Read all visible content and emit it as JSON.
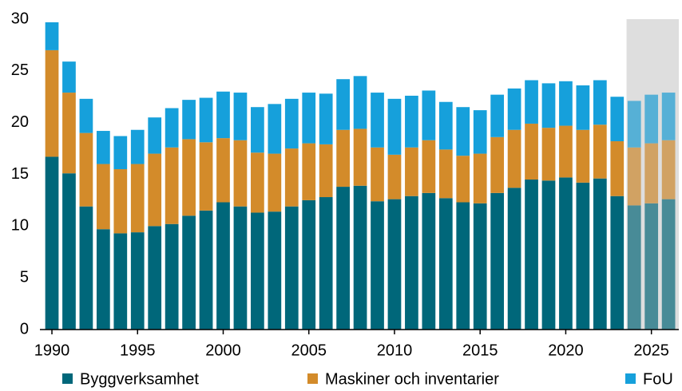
{
  "chart_data": {
    "type": "stacked_bar",
    "x": [
      1990,
      1991,
      1992,
      1993,
      1994,
      1995,
      1996,
      1997,
      1998,
      1999,
      2000,
      2001,
      2002,
      2003,
      2004,
      2005,
      2006,
      2007,
      2008,
      2009,
      2010,
      2011,
      2012,
      2013,
      2014,
      2015,
      2016,
      2017,
      2018,
      2019,
      2020,
      2021,
      2022,
      2023,
      2024,
      2025,
      2026
    ],
    "series": [
      {
        "name": "Byggverksamhet",
        "color": "#00677a",
        "values": [
          16.7,
          15.1,
          11.9,
          9.7,
          9.3,
          9.4,
          10.0,
          10.2,
          11.0,
          11.5,
          12.3,
          11.9,
          11.3,
          11.4,
          11.9,
          12.5,
          12.8,
          13.8,
          13.9,
          12.4,
          12.6,
          12.9,
          13.2,
          12.7,
          12.3,
          12.2,
          13.2,
          13.7,
          14.5,
          14.4,
          14.7,
          14.2,
          14.6,
          12.9,
          12.0,
          12.2,
          12.6
        ]
      },
      {
        "name": "Maskiner och inventarier",
        "color": "#d38b2a",
        "values": [
          10.3,
          7.8,
          7.1,
          6.3,
          6.2,
          6.6,
          7.0,
          7.4,
          7.4,
          6.6,
          6.2,
          6.4,
          5.8,
          5.6,
          5.6,
          5.5,
          5.1,
          5.5,
          5.5,
          5.2,
          4.3,
          4.7,
          5.1,
          4.7,
          4.5,
          4.8,
          5.4,
          5.6,
          5.4,
          5.1,
          5.0,
          5.1,
          5.2,
          5.3,
          5.6,
          5.8,
          5.7
        ]
      },
      {
        "name": "FoU",
        "color": "#16a0db",
        "values": [
          2.7,
          3.0,
          3.3,
          3.2,
          3.2,
          3.3,
          3.5,
          3.8,
          3.8,
          4.3,
          4.5,
          4.6,
          4.4,
          4.8,
          4.8,
          4.9,
          4.9,
          4.9,
          5.1,
          5.3,
          5.4,
          5.0,
          4.8,
          4.6,
          4.7,
          4.2,
          4.1,
          4.0,
          4.2,
          4.3,
          4.3,
          4.3,
          4.3,
          4.3,
          4.5,
          4.7,
          4.6
        ]
      }
    ],
    "xlim": [
      1989.3,
      2026.6
    ],
    "xticks": [
      1990,
      1995,
      2000,
      2005,
      2010,
      2015,
      2020,
      2025
    ],
    "ylim": [
      0,
      30
    ],
    "yticks": [
      0,
      5,
      10,
      15,
      20,
      25,
      30
    ],
    "shade_xlim": [
      2023.55,
      2026.6
    ],
    "grid": false
  }
}
